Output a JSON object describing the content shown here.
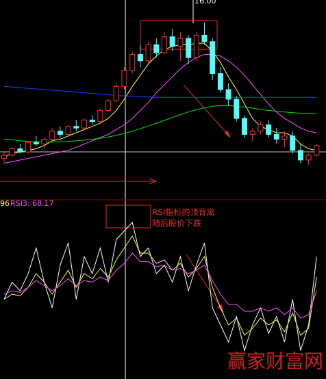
{
  "chart_data": [
    {
      "type": "candlestick",
      "peak_label": "16.00",
      "up_color": "#ff3232",
      "down_color": "#54fcfc",
      "ylim": [
        10.5,
        16.7
      ],
      "open": [
        11.75,
        11.85,
        12.05,
        11.95,
        12.25,
        12.2,
        12.35,
        12.6,
        12.5,
        12.75,
        12.7,
        12.95,
        12.9,
        13.25,
        13.55,
        14.0,
        14.5,
        15.0,
        14.8,
        15.3,
        15.05,
        15.55,
        15.25,
        15.5,
        14.9,
        15.6,
        15.4,
        14.4,
        13.9,
        13.6,
        13.0,
        12.5,
        12.6,
        12.8,
        12.5,
        12.35,
        12.45,
        12.0,
        11.7,
        11.85
      ],
      "high": [
        11.95,
        12.1,
        12.2,
        12.3,
        12.45,
        12.4,
        12.7,
        12.75,
        12.8,
        12.95,
        13.0,
        13.1,
        13.3,
        13.6,
        14.1,
        14.6,
        15.1,
        15.3,
        15.4,
        15.5,
        15.7,
        15.8,
        15.7,
        15.6,
        15.7,
        16.0,
        15.5,
        14.6,
        14.1,
        13.7,
        13.1,
        12.7,
        12.9,
        12.95,
        12.7,
        12.6,
        12.6,
        12.2,
        11.9,
        12.2
      ],
      "low": [
        11.6,
        11.8,
        11.9,
        11.9,
        12.15,
        12.05,
        12.3,
        12.4,
        12.45,
        12.6,
        12.65,
        12.8,
        12.85,
        13.2,
        13.5,
        13.9,
        14.4,
        14.6,
        14.7,
        14.9,
        15.0,
        15.1,
        14.8,
        14.7,
        14.8,
        15.3,
        14.2,
        13.8,
        13.4,
        12.9,
        12.4,
        12.3,
        12.5,
        12.4,
        12.2,
        12.1,
        11.9,
        11.6,
        11.55,
        11.8
      ],
      "close": [
        11.85,
        12.05,
        11.95,
        12.25,
        12.2,
        12.35,
        12.6,
        12.5,
        12.75,
        12.7,
        12.95,
        12.9,
        13.25,
        13.55,
        14.0,
        14.5,
        15.0,
        14.8,
        15.3,
        15.05,
        15.55,
        15.25,
        15.5,
        14.9,
        15.6,
        15.4,
        14.4,
        13.9,
        13.6,
        13.0,
        12.5,
        12.6,
        12.8,
        12.5,
        12.35,
        12.45,
        12.0,
        11.7,
        11.85,
        12.15
      ],
      "series": [
        {
          "color": "#ffff54",
          "values": [
            11.8,
            11.9,
            11.95,
            12.0,
            12.05,
            12.15,
            12.3,
            12.35,
            12.45,
            12.55,
            12.65,
            12.75,
            12.85,
            13.0,
            13.25,
            13.6,
            14.0,
            14.35,
            14.7,
            14.95,
            15.15,
            15.25,
            15.3,
            15.3,
            15.35,
            15.35,
            15.1,
            14.75,
            14.3,
            13.9,
            13.45,
            13.0,
            12.75,
            12.65,
            12.55,
            12.55,
            12.45,
            12.2,
            12.05,
            12.0
          ]
        },
        {
          "color": "#ff54ff",
          "values": [
            11.6,
            11.65,
            11.7,
            11.75,
            11.8,
            11.85,
            11.9,
            11.95,
            12.0,
            12.1,
            12.2,
            12.3,
            12.4,
            12.5,
            12.65,
            12.8,
            13.0,
            13.25,
            13.5,
            13.8,
            14.05,
            14.3,
            14.55,
            14.75,
            14.9,
            15.0,
            15.0,
            14.95,
            14.8,
            14.6,
            14.35,
            14.05,
            13.75,
            13.45,
            13.2,
            13.0,
            12.85,
            12.7,
            12.6,
            12.55
          ]
        },
        {
          "color": "#00e000",
          "values": [
            12.35,
            12.33,
            12.3,
            12.28,
            12.27,
            12.26,
            12.26,
            12.27,
            12.28,
            12.3,
            12.32,
            12.35,
            12.38,
            12.42,
            12.47,
            12.53,
            12.6,
            12.68,
            12.76,
            12.85,
            12.94,
            13.03,
            13.12,
            13.2,
            13.27,
            13.33,
            13.38,
            13.4,
            13.4,
            13.38,
            13.35,
            13.32,
            13.28,
            13.25,
            13.22,
            13.2,
            13.18,
            13.16,
            13.15,
            13.15
          ]
        },
        {
          "color": "#2040ff",
          "values": [
            14.0,
            13.98,
            13.96,
            13.94,
            13.92,
            13.9,
            13.88,
            13.86,
            13.84,
            13.82,
            13.8,
            13.78,
            13.76,
            13.74,
            13.72,
            13.7,
            13.69,
            13.68,
            13.67,
            13.66,
            13.66,
            13.66,
            13.66,
            13.66,
            13.66,
            13.66,
            13.66,
            13.66,
            13.66,
            13.66,
            13.66,
            13.66,
            13.66,
            13.66,
            13.66,
            13.66,
            13.66,
            13.66,
            13.66,
            13.66
          ]
        }
      ]
    },
    {
      "type": "line",
      "legend": [
        "96",
        "RSI3: 68.17"
      ],
      "annotations": [
        "RSI指标的顶背离",
        "随后股价下跌"
      ],
      "watermark": "赢家财富网",
      "ylim": [
        0,
        100
      ],
      "series": [
        {
          "color": "#ffffff",
          "values": [
            45,
            55,
            50,
            60,
            75,
            55,
            40,
            65,
            78,
            45,
            70,
            60,
            75,
            55,
            80,
            85,
            90,
            70,
            75,
            60,
            65,
            55,
            70,
            50,
            65,
            78,
            40,
            30,
            20,
            35,
            15,
            30,
            40,
            25,
            35,
            20,
            45,
            15,
            30,
            70
          ]
        },
        {
          "color": "#ffff54",
          "values": [
            45,
            48,
            47,
            52,
            60,
            55,
            48,
            55,
            62,
            52,
            60,
            57,
            63,
            58,
            68,
            75,
            82,
            72,
            72,
            66,
            68,
            62,
            66,
            58,
            63,
            70,
            52,
            40,
            30,
            34,
            24,
            28,
            34,
            30,
            33,
            26,
            37,
            24,
            28,
            58
          ]
        },
        {
          "color": "#ff54ff",
          "values": [
            48,
            50,
            49,
            52,
            56,
            53,
            50,
            53,
            57,
            53,
            56,
            55,
            58,
            56,
            62,
            66,
            72,
            67,
            67,
            64,
            65,
            62,
            63,
            60,
            62,
            65,
            56,
            48,
            42,
            42,
            38,
            38,
            40,
            38,
            40,
            36,
            40,
            34,
            36,
            50
          ]
        }
      ]
    }
  ]
}
